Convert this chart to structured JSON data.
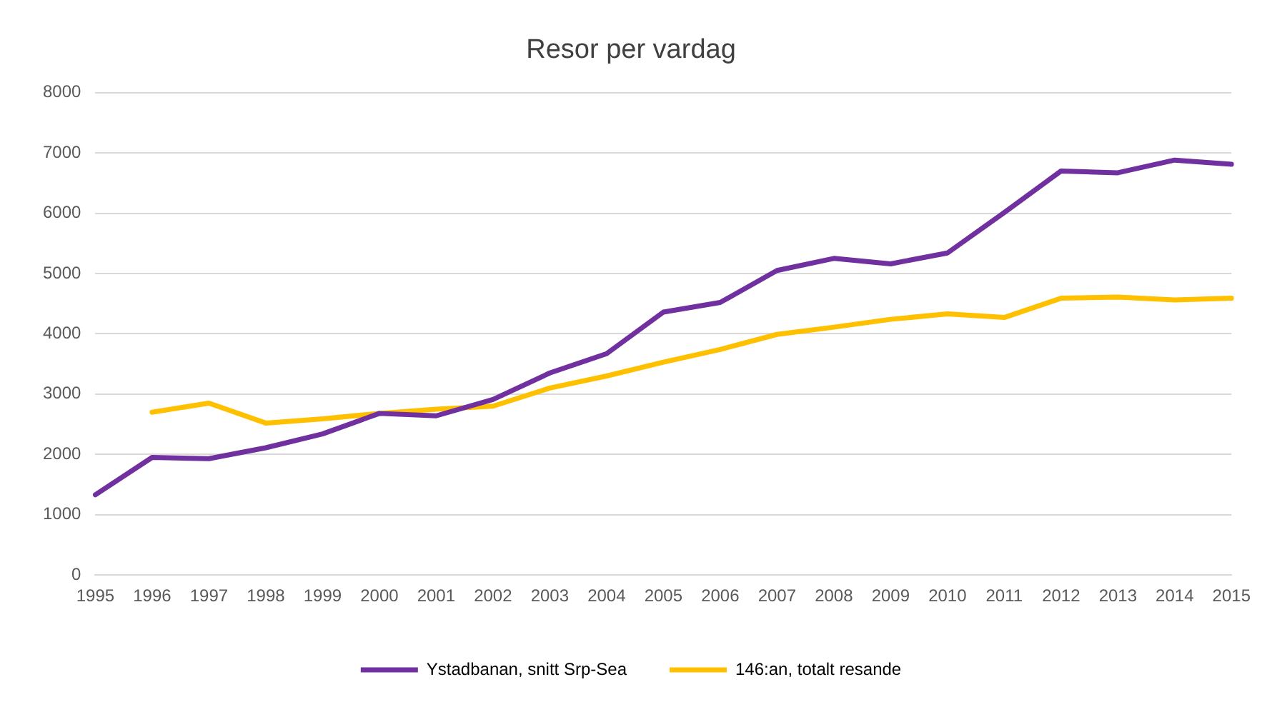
{
  "chart_data": {
    "type": "line",
    "title": "Resor per vardag",
    "categories": [
      "1995",
      "1996",
      "1997",
      "1998",
      "1999",
      "2000",
      "2001",
      "2002",
      "2003",
      "2004",
      "2005",
      "2006",
      "2007",
      "2008",
      "2009",
      "2010",
      "2011",
      "2012",
      "2013",
      "2014",
      "2015"
    ],
    "series": [
      {
        "name": "Ystadbanan, snitt Srp-Sea",
        "color": "#7030a0",
        "values": [
          1330,
          1950,
          1930,
          2110,
          2340,
          2680,
          2640,
          2910,
          3350,
          3670,
          4360,
          4520,
          5050,
          5250,
          5160,
          5340,
          6010,
          6700,
          6670,
          6880,
          6810
        ]
      },
      {
        "name": "146:an, totalt resande",
        "color": "#ffc000",
        "values": [
          null,
          2700,
          2850,
          2520,
          2590,
          2680,
          2750,
          2800,
          3100,
          3300,
          3530,
          3740,
          3990,
          4110,
          4240,
          4330,
          4270,
          4590,
          4610,
          4560,
          4590
        ]
      }
    ],
    "ylim": [
      0,
      8000
    ],
    "yticks": [
      0,
      1000,
      2000,
      3000,
      4000,
      5000,
      6000,
      7000,
      8000
    ],
    "grid": "y",
    "legend": "bottom",
    "marker": "none",
    "line_style": "solid"
  }
}
